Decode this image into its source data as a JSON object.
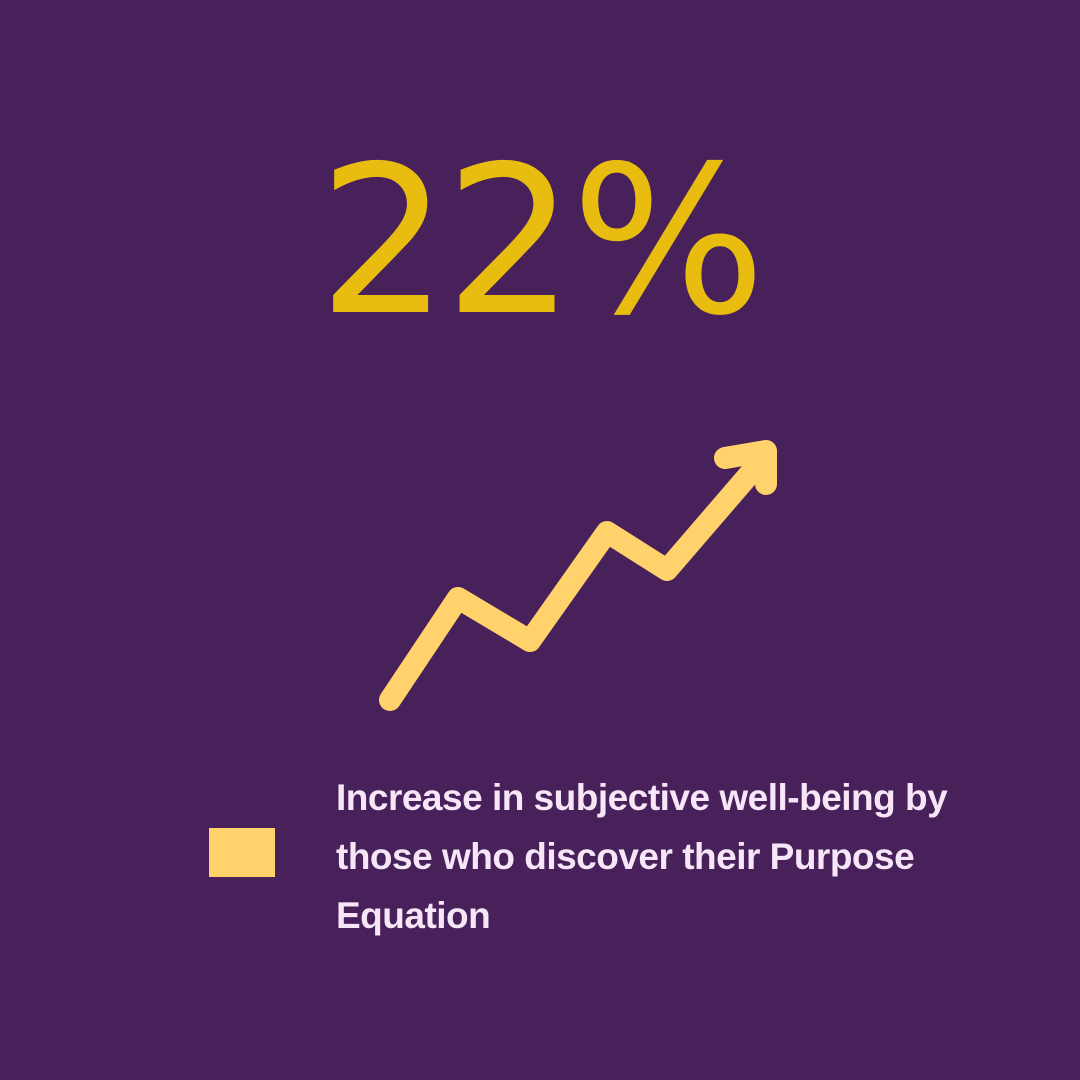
{
  "stat": {
    "value": "22%"
  },
  "caption": {
    "text": "Increase in subjective well-being by those who discover their Purpose Equation"
  },
  "colors": {
    "background": "#48215a",
    "value_text": "#e8bd10",
    "arrow": "#ffd26b",
    "swatch": "#ffd26b",
    "caption_text": "#f6e6f7"
  },
  "icons": {
    "trend": "trending-up-arrow-icon",
    "legend": "legend-swatch"
  }
}
